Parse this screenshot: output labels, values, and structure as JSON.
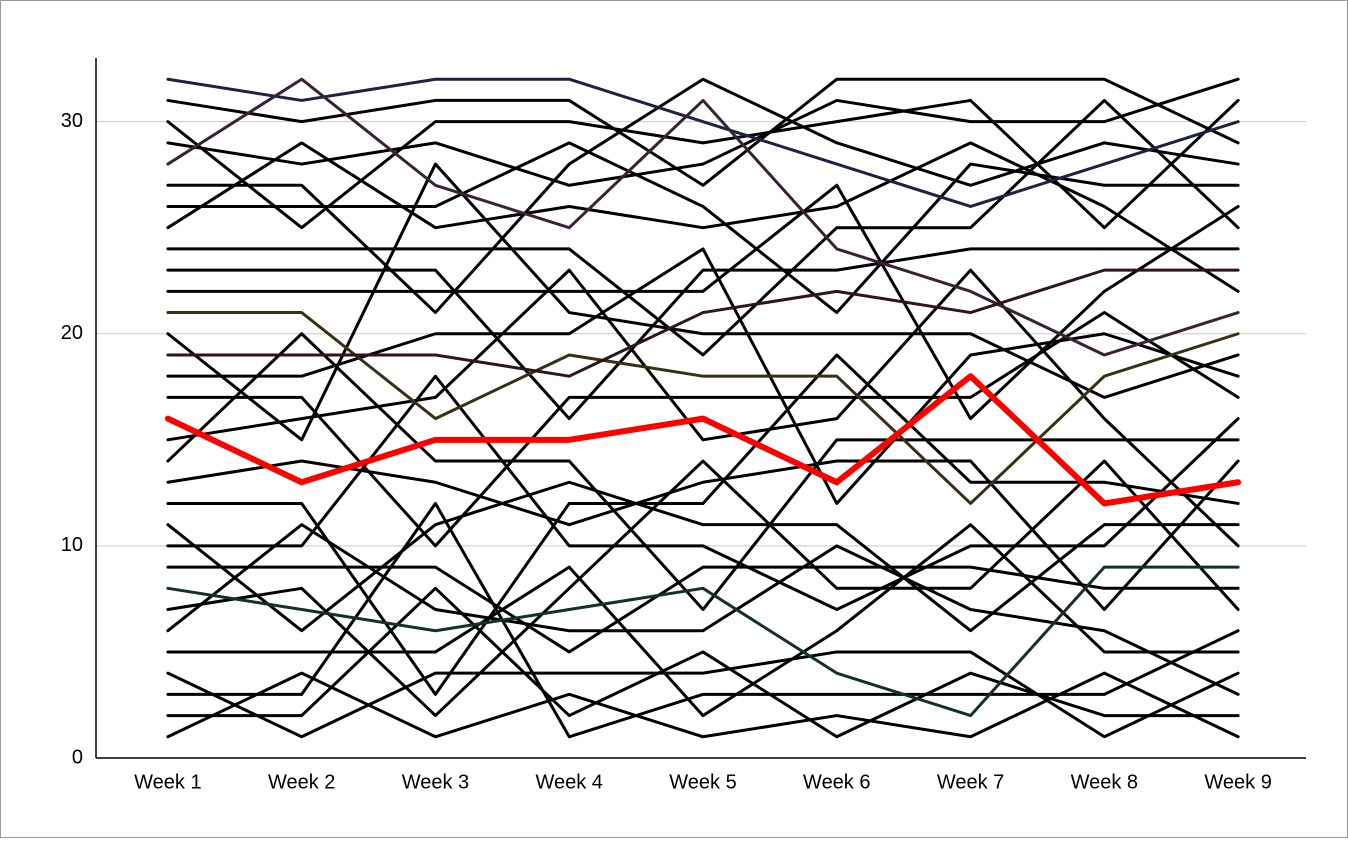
{
  "chart_data": {
    "type": "line",
    "categories": [
      "Week 1",
      "Week 2",
      "Week 3",
      "Week 4",
      "Week 5",
      "Week 6",
      "Week 7",
      "Week 8",
      "Week 9"
    ],
    "ylim": [
      0,
      33
    ],
    "yticks": [
      0,
      10,
      20,
      30
    ],
    "grid": true,
    "series": [
      {
        "color": "#000000",
        "values": [
          1,
          4,
          1,
          3,
          1,
          2,
          1,
          4,
          1
        ]
      },
      {
        "color": "#000000",
        "values": [
          2,
          2,
          8,
          2,
          5,
          1,
          4,
          2,
          2
        ]
      },
      {
        "color": "#000000",
        "values": [
          3,
          3,
          12,
          1,
          3,
          3,
          3,
          3,
          6
        ]
      },
      {
        "color": "#000000",
        "values": [
          4,
          1,
          4,
          4,
          4,
          5,
          5,
          1,
          4
        ]
      },
      {
        "color": "#000000",
        "values": [
          5,
          5,
          5,
          9,
          2,
          6,
          11,
          5,
          5
        ]
      },
      {
        "color": "#000000",
        "values": [
          6,
          11,
          7,
          6,
          6,
          10,
          7,
          6,
          3
        ]
      },
      {
        "color": "#000000",
        "values": [
          7,
          8,
          2,
          8,
          14,
          8,
          8,
          14,
          7
        ]
      },
      {
        "color": "#000000",
        "values": [
          9,
          9,
          9,
          5,
          9,
          9,
          9,
          8,
          8
        ]
      },
      {
        "color": "#000000",
        "values": [
          10,
          10,
          18,
          10,
          10,
          7,
          10,
          10,
          16
        ]
      },
      {
        "color": "#000000",
        "values": [
          11,
          6,
          11,
          13,
          11,
          11,
          6,
          11,
          11
        ]
      },
      {
        "color": "#000000",
        "values": [
          12,
          12,
          3,
          12,
          12,
          19,
          13,
          13,
          12
        ]
      },
      {
        "color": "#000000",
        "values": [
          13,
          14,
          13,
          11,
          13,
          14,
          14,
          7,
          14
        ]
      },
      {
        "color": "#000000",
        "values": [
          14,
          20,
          14,
          14,
          7,
          15,
          15,
          15,
          15
        ]
      },
      {
        "color": "#000000",
        "values": [
          15,
          16,
          17,
          23,
          15,
          16,
          23,
          16,
          10
        ]
      },
      {
        "color": "#000000",
        "values": [
          17,
          17,
          10,
          17,
          17,
          17,
          17,
          21,
          17
        ]
      },
      {
        "color": "#000000",
        "values": [
          18,
          18,
          20,
          20,
          24,
          12,
          19,
          20,
          18
        ]
      },
      {
        "color": "#000000",
        "values": [
          20,
          15,
          28,
          21,
          20,
          20,
          20,
          17,
          19
        ]
      },
      {
        "color": "#000000",
        "values": [
          22,
          22,
          22,
          22,
          22,
          27,
          16,
          22,
          26
        ]
      },
      {
        "color": "#000000",
        "values": [
          23,
          23,
          23,
          16,
          23,
          23,
          24,
          24,
          24
        ]
      },
      {
        "color": "#000000",
        "values": [
          24,
          24,
          24,
          24,
          19,
          25,
          25,
          31,
          25
        ]
      },
      {
        "color": "#000000",
        "values": [
          25,
          29,
          25,
          26,
          25,
          26,
          29,
          26,
          22
        ]
      },
      {
        "color": "#000000",
        "values": [
          26,
          26,
          26,
          29,
          26,
          21,
          28,
          27,
          27
        ]
      },
      {
        "color": "#000000",
        "values": [
          27,
          27,
          21,
          28,
          32,
          29,
          27,
          29,
          28
        ]
      },
      {
        "color": "#000000",
        "values": [
          29,
          28,
          29,
          27,
          28,
          31,
          30,
          30,
          32
        ]
      },
      {
        "color": "#000000",
        "values": [
          30,
          25,
          30,
          30,
          29,
          30,
          31,
          25,
          31
        ]
      },
      {
        "color": "#000000",
        "values": [
          31,
          30,
          31,
          31,
          27,
          32,
          32,
          32,
          29
        ]
      },
      {
        "color": "#1c2340",
        "values": [
          32,
          31,
          32,
          32,
          30,
          28,
          26,
          28,
          30
        ]
      },
      {
        "color": "#3a2236",
        "values": [
          28,
          32,
          27,
          25,
          31,
          24,
          22,
          19,
          21
        ]
      },
      {
        "color": "#3a2f12",
        "values": [
          21,
          21,
          16,
          19,
          18,
          18,
          12,
          18,
          20
        ]
      },
      {
        "color": "#13302f",
        "values": [
          8,
          7,
          6,
          7,
          8,
          4,
          2,
          9,
          9
        ]
      },
      {
        "color": "#2e1616",
        "values": [
          19,
          19,
          19,
          18,
          21,
          22,
          21,
          23,
          23
        ]
      },
      {
        "color": "#ff0000",
        "width": 6,
        "values": [
          16,
          13,
          15,
          15,
          16,
          13,
          18,
          12,
          13
        ]
      }
    ]
  }
}
